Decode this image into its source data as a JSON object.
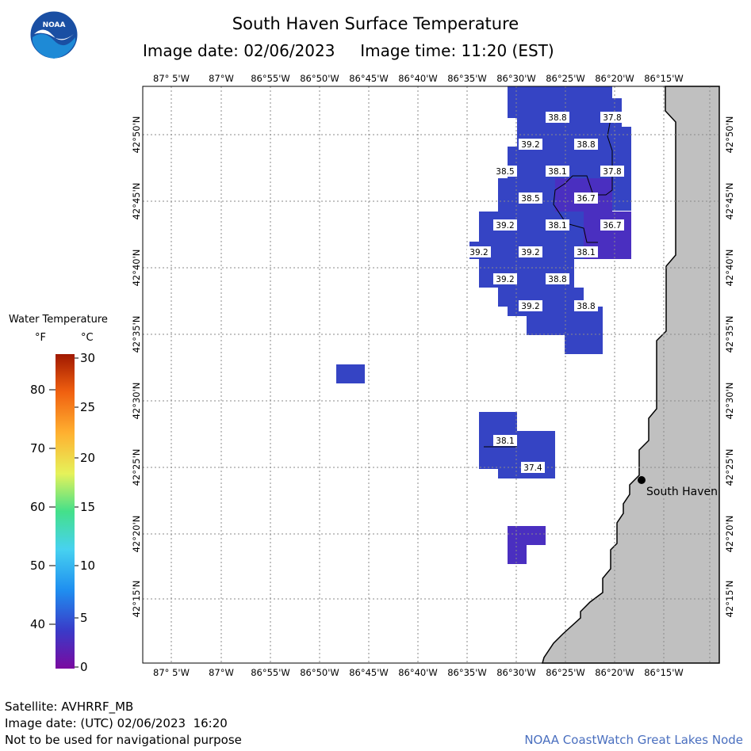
{
  "header": {
    "title": "South Haven Surface Temperature",
    "image_date": "Image date: 02/06/2023",
    "image_time": "Image time: 11:20 (EST)"
  },
  "logo": {
    "text": "NOAA"
  },
  "map": {
    "lon_labels": [
      "87° 5'W",
      "87°W",
      "86°55'W",
      "86°50'W",
      "86°45'W",
      "86°40'W",
      "86°35'W",
      "86°30'W",
      "86°25'W",
      "86°20'W",
      "86°15'W"
    ],
    "lat_labels": [
      "42°50'N",
      "42°45'N",
      "42°40'N",
      "42°35'N",
      "42°30'N",
      "42°25'N",
      "42°20'N",
      "42°15'N"
    ],
    "place_label": "South Haven",
    "temperature_labels": [
      "38.8",
      "37.8",
      "39.2",
      "38.8",
      "38.5",
      "38.1",
      "37.8",
      "38.5",
      "36.7",
      "39.2",
      "38.1",
      "36.7",
      "39.2",
      "39.2",
      "38.1",
      "39.2",
      "38.8",
      "39.2",
      "38.8",
      "38.1",
      "37.4"
    ],
    "colors": {
      "water_cold": "#3544c4",
      "water_colder": "#4a2fc0",
      "land": "#c0c0c0",
      "grid": "#9a9a9a"
    }
  },
  "legend": {
    "title": "Water Temperature",
    "unit_f": "°F",
    "unit_c": "°C",
    "f_ticks": [
      "80",
      "70",
      "60",
      "50",
      "40"
    ],
    "c_ticks": [
      "30",
      "25",
      "20",
      "15",
      "10",
      "5",
      "0"
    ]
  },
  "footer": {
    "satellite": "Satellite: AVHRRF_MB",
    "utc_date": "Image date: (UTC) 02/06/2023  16:20",
    "disclaimer": "Not to be used for navigational purpose",
    "credit": "NOAA CoastWatch Great Lakes Node"
  }
}
